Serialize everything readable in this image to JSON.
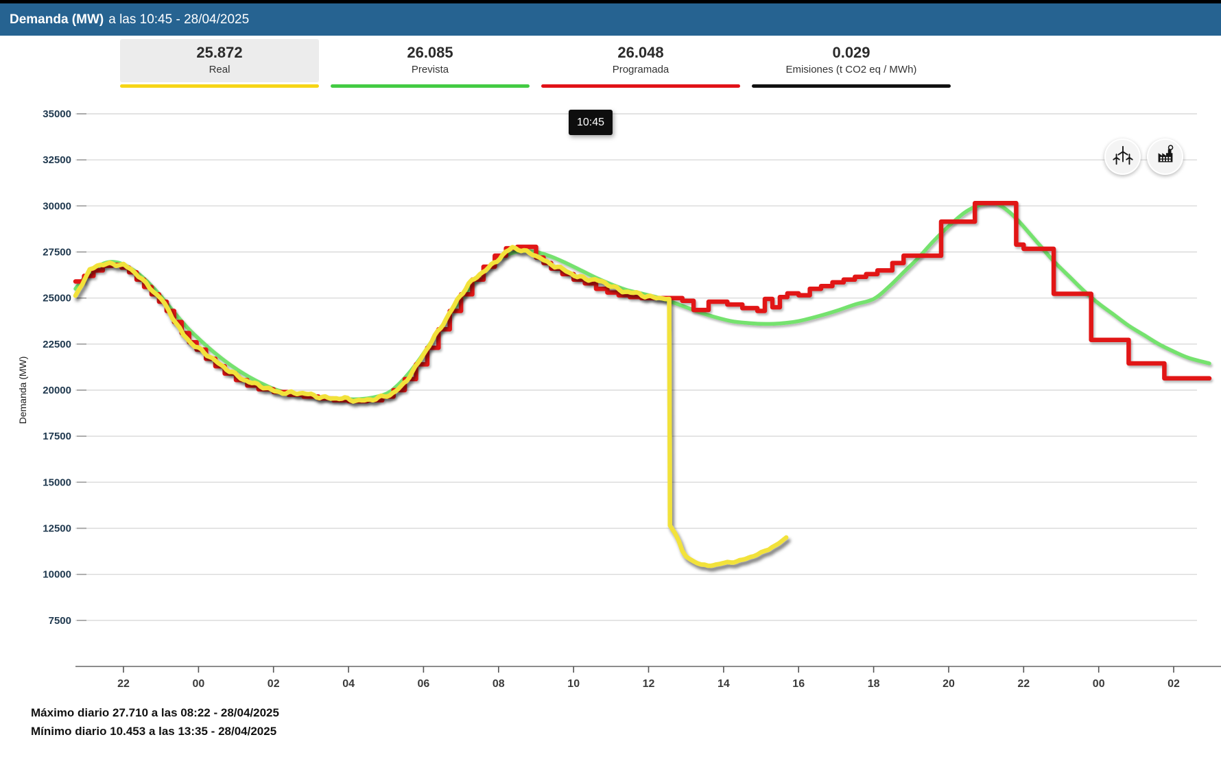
{
  "header": {
    "title_bold": "Demanda (MW)",
    "title_sub": "a las 10:45 - 28/04/2025"
  },
  "legend": [
    {
      "id": "real",
      "value": "25.872",
      "label": "Real",
      "color": "#f6d516",
      "selected": true
    },
    {
      "id": "prevista",
      "value": "26.085",
      "label": "Prevista",
      "color": "#43cb43",
      "selected": false
    },
    {
      "id": "programada",
      "value": "26.048",
      "label": "Programada",
      "color": "#e11218",
      "selected": false
    },
    {
      "id": "emisiones",
      "value": "0.029",
      "label": "Emisiones (t CO2 eq / MWh)",
      "color": "#111111",
      "selected": false
    }
  ],
  "tooltip": {
    "text": "10:45"
  },
  "buttons": {
    "wind": "wind-generation",
    "factory": "emissions"
  },
  "footer": {
    "max_line": "Máximo diario 27.710 a las 08:22 - 28/04/2025",
    "min_line": "Mínimo diario 10.453 a las 13:35 - 28/04/2025"
  },
  "chart_data": {
    "type": "line",
    "title": "Demanda (MW) a las 10:45 - 28/04/2025",
    "ylabel": "Demanda (MW)",
    "ylim": [
      5000,
      35000
    ],
    "grid": true,
    "legend_position": "top",
    "y_ticks": [
      35000,
      32500,
      30000,
      27500,
      25000,
      22500,
      20000,
      17500,
      15000,
      12500,
      10000,
      7500
    ],
    "x_ticks": [
      [
        -2,
        "22"
      ],
      [
        0,
        "00"
      ],
      [
        2,
        "02"
      ],
      [
        4,
        "04"
      ],
      [
        6,
        "06"
      ],
      [
        8,
        "08"
      ],
      [
        10,
        "10"
      ],
      [
        12,
        "12"
      ],
      [
        14,
        "14"
      ],
      [
        16,
        "16"
      ],
      [
        18,
        "18"
      ],
      [
        20,
        "20"
      ],
      [
        22,
        "22"
      ],
      [
        24,
        "00"
      ],
      [
        26,
        "02"
      ]
    ],
    "x_hours_range": [
      -3.28,
      27.1
    ],
    "current_time_hour": 10.75,
    "series": [
      {
        "name": "Prevista",
        "color": "#74e26e",
        "width": 5.5,
        "style": "smooth",
        "points": [
          [
            -3.28,
            25500
          ],
          [
            -3.0,
            26200
          ],
          [
            -2.7,
            26700
          ],
          [
            -2.4,
            26950
          ],
          [
            -2.1,
            26900
          ],
          [
            -1.8,
            26600
          ],
          [
            -1.5,
            26150
          ],
          [
            -1.2,
            25550
          ],
          [
            -0.9,
            24850
          ],
          [
            -0.6,
            24100
          ],
          [
            -0.3,
            23400
          ],
          [
            0.0,
            22800
          ],
          [
            0.3,
            22250
          ],
          [
            0.6,
            21750
          ],
          [
            0.9,
            21300
          ],
          [
            1.2,
            20900
          ],
          [
            1.5,
            20550
          ],
          [
            1.8,
            20250
          ],
          [
            2.1,
            20000
          ],
          [
            2.4,
            19850
          ],
          [
            2.7,
            19750
          ],
          [
            3.0,
            19650
          ],
          [
            3.5,
            19550
          ],
          [
            4.0,
            19500
          ],
          [
            4.5,
            19550
          ],
          [
            5.0,
            19800
          ],
          [
            5.3,
            20250
          ],
          [
            5.6,
            20900
          ],
          [
            5.9,
            21700
          ],
          [
            6.2,
            22600
          ],
          [
            6.5,
            23500
          ],
          [
            6.8,
            24400
          ],
          [
            7.1,
            25200
          ],
          [
            7.4,
            26000
          ],
          [
            7.7,
            26600
          ],
          [
            8.0,
            27100
          ],
          [
            8.3,
            27400
          ],
          [
            8.6,
            27550
          ],
          [
            9.0,
            27500
          ],
          [
            9.4,
            27250
          ],
          [
            9.8,
            26900
          ],
          [
            10.2,
            26500
          ],
          [
            10.6,
            26100
          ],
          [
            11.0,
            25750
          ],
          [
            11.4,
            25450
          ],
          [
            11.8,
            25250
          ],
          [
            12.2,
            25050
          ],
          [
            12.6,
            24800
          ],
          [
            13.0,
            24500
          ],
          [
            13.4,
            24200
          ],
          [
            13.8,
            23950
          ],
          [
            14.2,
            23750
          ],
          [
            14.6,
            23650
          ],
          [
            15.0,
            23600
          ],
          [
            15.5,
            23620
          ],
          [
            16.0,
            23750
          ],
          [
            16.5,
            24000
          ],
          [
            17.0,
            24300
          ],
          [
            17.5,
            24650
          ],
          [
            18.0,
            24950
          ],
          [
            18.4,
            25600
          ],
          [
            18.8,
            26400
          ],
          [
            19.2,
            27200
          ],
          [
            19.6,
            28100
          ],
          [
            20.0,
            28900
          ],
          [
            20.4,
            29600
          ],
          [
            20.7,
            29950
          ],
          [
            21.0,
            30120
          ],
          [
            21.3,
            30100
          ],
          [
            21.6,
            29700
          ],
          [
            21.9,
            29100
          ],
          [
            22.2,
            28400
          ],
          [
            22.5,
            27700
          ],
          [
            22.8,
            27000
          ],
          [
            23.2,
            26200
          ],
          [
            23.6,
            25400
          ],
          [
            24.0,
            24700
          ],
          [
            24.4,
            24100
          ],
          [
            24.8,
            23500
          ],
          [
            25.2,
            23000
          ],
          [
            25.6,
            22500
          ],
          [
            26.0,
            22100
          ],
          [
            26.4,
            21750
          ],
          [
            26.95,
            21450
          ]
        ]
      },
      {
        "name": "Programada",
        "color": "#e11218",
        "width": 6.5,
        "style": "step",
        "end_hour": 26.95,
        "points": [
          [
            -3.28,
            25900
          ],
          [
            -3.05,
            26200
          ],
          [
            -2.8,
            26500
          ],
          [
            -2.55,
            26750
          ],
          [
            -2.3,
            26800
          ],
          [
            -2.05,
            26650
          ],
          [
            -1.85,
            26400
          ],
          [
            -1.65,
            26000
          ],
          [
            -1.45,
            25600
          ],
          [
            -1.25,
            25200
          ],
          [
            -1.05,
            24800
          ],
          [
            -0.85,
            24300
          ],
          [
            -0.65,
            23700
          ],
          [
            -0.45,
            23100
          ],
          [
            -0.25,
            22600
          ],
          [
            -0.05,
            22200
          ],
          [
            0.2,
            21700
          ],
          [
            0.45,
            21300
          ],
          [
            0.7,
            20900
          ],
          [
            1.0,
            20550
          ],
          [
            1.3,
            20250
          ],
          [
            1.6,
            20050
          ],
          [
            2.0,
            19900
          ],
          [
            2.4,
            19750
          ],
          [
            2.8,
            19650
          ],
          [
            3.2,
            19550
          ],
          [
            3.6,
            19450
          ],
          [
            4.0,
            19400
          ],
          [
            4.5,
            19450
          ],
          [
            4.9,
            19650
          ],
          [
            5.2,
            20000
          ],
          [
            5.5,
            20600
          ],
          [
            5.8,
            21400
          ],
          [
            6.1,
            22300
          ],
          [
            6.4,
            23300
          ],
          [
            6.7,
            24300
          ],
          [
            7.0,
            25200
          ],
          [
            7.3,
            26000
          ],
          [
            7.6,
            26700
          ],
          [
            7.9,
            27300
          ],
          [
            8.2,
            27700
          ],
          [
            8.5,
            27780
          ],
          [
            9.0,
            27200
          ],
          [
            9.2,
            26900
          ],
          [
            9.4,
            26600
          ],
          [
            9.7,
            26300
          ],
          [
            10.0,
            26000
          ],
          [
            10.3,
            25800
          ],
          [
            10.6,
            25500
          ],
          [
            10.9,
            25300
          ],
          [
            11.2,
            25150
          ],
          [
            11.5,
            25050
          ],
          [
            11.8,
            25000
          ],
          [
            12.9,
            24850
          ],
          [
            13.2,
            24350
          ],
          [
            13.6,
            24800
          ],
          [
            14.1,
            24650
          ],
          [
            14.5,
            24450
          ],
          [
            14.9,
            24300
          ],
          [
            15.1,
            24950
          ],
          [
            15.3,
            24500
          ],
          [
            15.5,
            25050
          ],
          [
            15.7,
            25250
          ],
          [
            16.0,
            25150
          ],
          [
            16.3,
            25500
          ],
          [
            16.6,
            25650
          ],
          [
            16.9,
            25850
          ],
          [
            17.2,
            26000
          ],
          [
            17.5,
            26150
          ],
          [
            17.8,
            26300
          ],
          [
            18.1,
            26500
          ],
          [
            18.5,
            26900
          ],
          [
            18.8,
            27300
          ],
          [
            19.8,
            29150
          ],
          [
            20.7,
            30150
          ],
          [
            21.8,
            27900
          ],
          [
            22.0,
            27670
          ],
          [
            22.8,
            25230
          ],
          [
            23.8,
            22730
          ],
          [
            24.8,
            21450
          ],
          [
            25.75,
            20640
          ]
        ]
      },
      {
        "name": "Real",
        "color": "#f2e23b",
        "width": 6.5,
        "style": "jagged",
        "points": [
          [
            -3.28,
            25100
          ],
          [
            -3.1,
            25800
          ],
          [
            -2.9,
            26450
          ],
          [
            -2.7,
            26750
          ],
          [
            -2.45,
            26900
          ],
          [
            -2.2,
            26850
          ],
          [
            -2.0,
            26800
          ],
          [
            -1.8,
            26500
          ],
          [
            -1.6,
            26200
          ],
          [
            -1.4,
            25800
          ],
          [
            -1.2,
            25400
          ],
          [
            -1.0,
            25000
          ],
          [
            -0.8,
            24300
          ],
          [
            -0.6,
            23600
          ],
          [
            -0.4,
            23000
          ],
          [
            -0.2,
            22600
          ],
          [
            0.0,
            22300
          ],
          [
            0.3,
            21800
          ],
          [
            0.6,
            21300
          ],
          [
            0.9,
            21000
          ],
          [
            1.2,
            20600
          ],
          [
            1.5,
            20300
          ],
          [
            1.8,
            20100
          ],
          [
            2.1,
            19950
          ],
          [
            2.4,
            19850
          ],
          [
            2.7,
            19800
          ],
          [
            3.0,
            19750
          ],
          [
            3.3,
            19650
          ],
          [
            3.6,
            19550
          ],
          [
            3.9,
            19500
          ],
          [
            4.2,
            19450
          ],
          [
            4.5,
            19500
          ],
          [
            4.8,
            19550
          ],
          [
            5.1,
            19700
          ],
          [
            5.4,
            20200
          ],
          [
            5.7,
            21000
          ],
          [
            6.0,
            21900
          ],
          [
            6.3,
            22900
          ],
          [
            6.6,
            23900
          ],
          [
            6.9,
            24900
          ],
          [
            7.2,
            25700
          ],
          [
            7.5,
            26300
          ],
          [
            7.8,
            26800
          ],
          [
            8.1,
            27300
          ],
          [
            8.37,
            27710
          ],
          [
            8.6,
            27600
          ],
          [
            8.9,
            27450
          ],
          [
            9.1,
            27200
          ],
          [
            9.3,
            26900
          ],
          [
            9.5,
            26700
          ],
          [
            9.8,
            26500
          ],
          [
            10.1,
            26200
          ],
          [
            10.4,
            26000
          ],
          [
            10.75,
            25872
          ],
          [
            11.0,
            25700
          ],
          [
            11.3,
            25400
          ],
          [
            11.6,
            25250
          ],
          [
            11.9,
            25100
          ],
          [
            12.2,
            25050
          ],
          [
            12.45,
            25020
          ],
          [
            12.55,
            24950
          ],
          [
            12.57,
            12650
          ],
          [
            12.7,
            12250
          ],
          [
            12.8,
            11850
          ],
          [
            12.9,
            11250
          ],
          [
            13.0,
            10950
          ],
          [
            13.2,
            10700
          ],
          [
            13.4,
            10580
          ],
          [
            13.58,
            10453
          ],
          [
            13.8,
            10520
          ],
          [
            14.0,
            10600
          ],
          [
            14.2,
            10650
          ],
          [
            14.5,
            10800
          ],
          [
            14.8,
            11000
          ],
          [
            15.0,
            11150
          ],
          [
            15.2,
            11350
          ],
          [
            15.4,
            11600
          ],
          [
            15.55,
            11800
          ],
          [
            15.67,
            12000
          ]
        ]
      }
    ],
    "annotations": {
      "daily_max": 27710,
      "daily_max_time": "08:22",
      "daily_min": 10453,
      "daily_min_time": "13:35"
    }
  }
}
